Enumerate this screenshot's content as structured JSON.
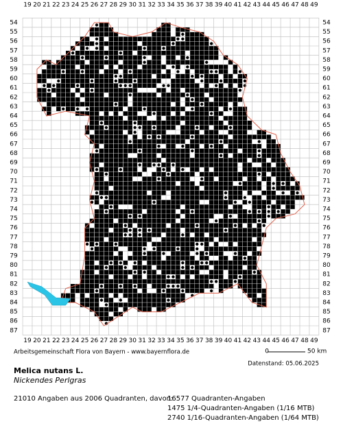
{
  "map": {
    "columns": [
      19,
      20,
      21,
      22,
      23,
      24,
      25,
      26,
      27,
      28,
      29,
      30,
      31,
      32,
      33,
      34,
      35,
      36,
      37,
      38,
      39,
      40,
      41,
      42,
      43,
      44,
      45,
      46,
      47,
      48,
      49
    ],
    "rows": [
      54,
      55,
      56,
      57,
      58,
      59,
      60,
      61,
      62,
      63,
      64,
      65,
      66,
      67,
      68,
      69,
      70,
      71,
      72,
      73,
      74,
      75,
      76,
      77,
      78,
      79,
      80,
      81,
      82,
      83,
      84,
      85,
      86,
      87
    ],
    "scale_start": "0",
    "scale_end": "50 km"
  },
  "footer": {
    "credit": "Arbeitsgemeinschaft Flora von Bayern - www.bayernflora.de",
    "date": "Datenstand: 05.06.2025",
    "species": "Melica nutans L.",
    "common_name": "Nickendes Perlgras",
    "summary": "21010 Angaben aus 2006 Quadranten, davon:",
    "details": [
      "16577 Quadranten-Angaben",
      "1475 1/4-Quadranten-Angaben (1/16 MTB)",
      "2740 1/16-Quadranten-Angaben (1/64 MTB)"
    ]
  }
}
